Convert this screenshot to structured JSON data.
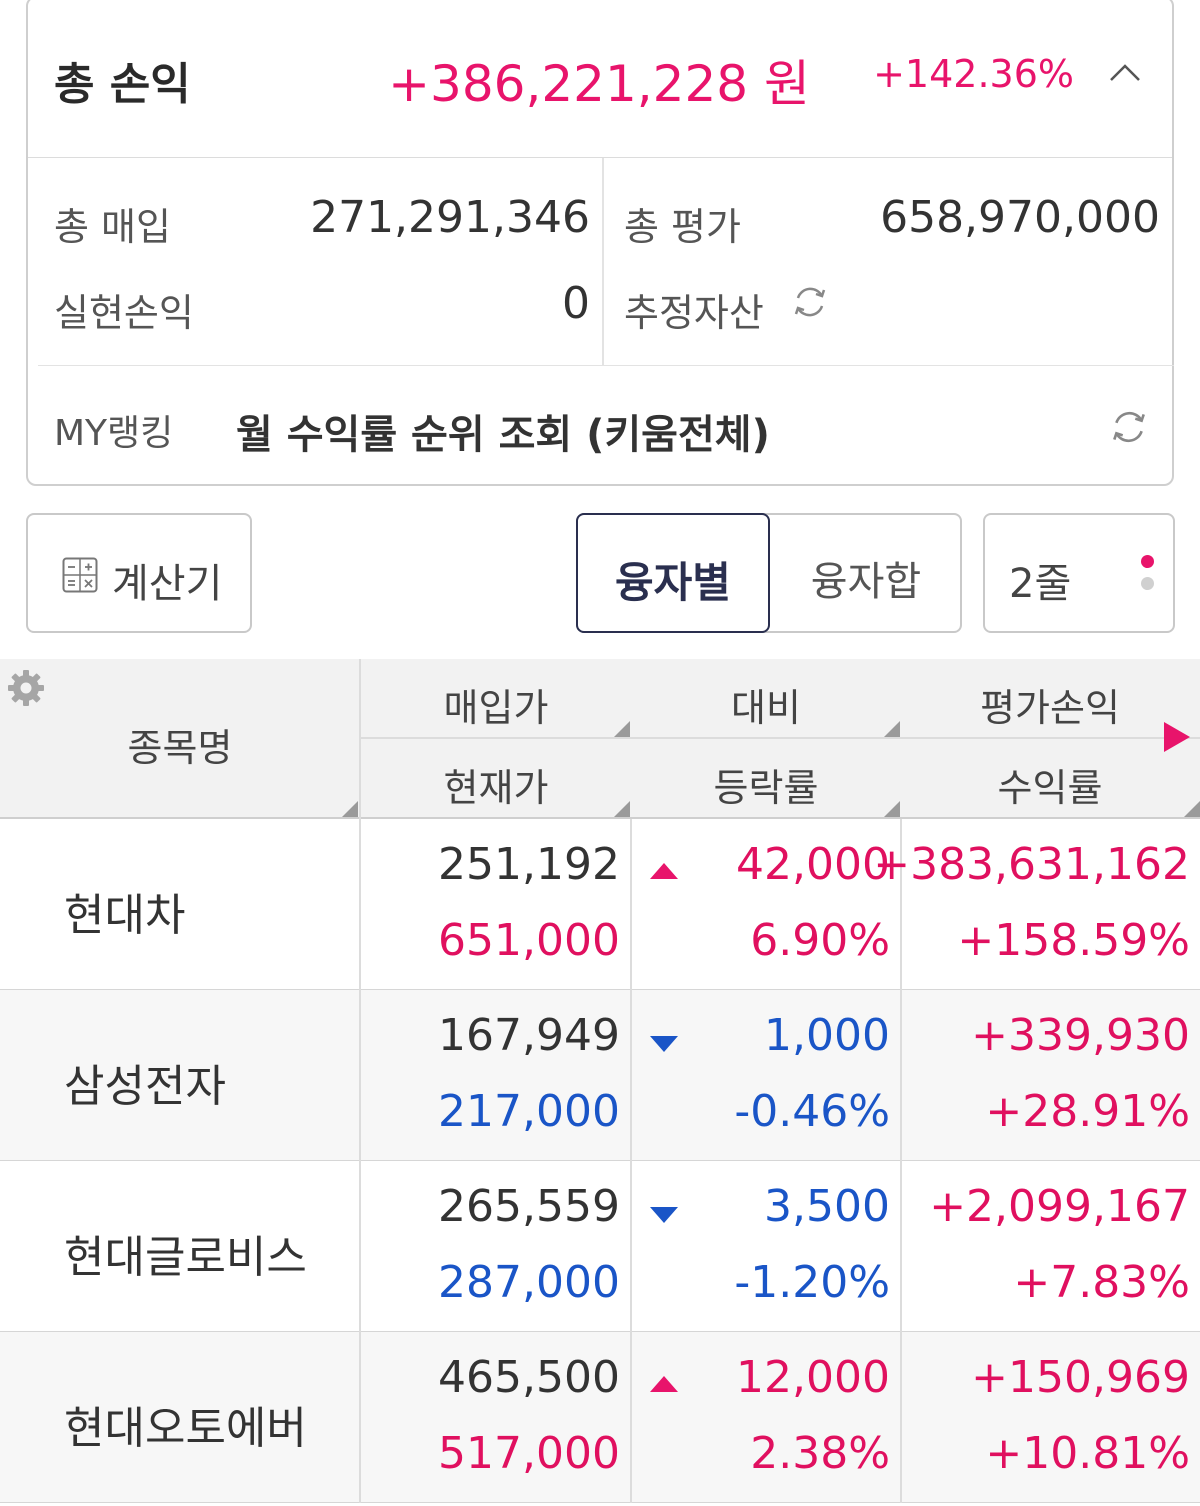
{
  "summary": {
    "title": "총 손익",
    "amount": "+386,221,228 원",
    "rate": "+142.36%",
    "total_purchase_label": "총 매입",
    "total_purchase_value": "271,291,346",
    "total_eval_label": "총 평가",
    "total_eval_value": "658,970,000",
    "realized_label": "실현손익",
    "realized_value": "0",
    "est_assets_label": "추정자산",
    "ranking_label": "MY랭킹",
    "ranking_text": "월 수익률 순위 조회 (키움전체)"
  },
  "toolbar": {
    "calculator_label": "계산기",
    "by_loan_label": "융자별",
    "loan_sum_label": "융자합",
    "lines_label": "2줄"
  },
  "table": {
    "headers": {
      "name": "종목명",
      "purchase_price": "매입가",
      "current_price": "현재가",
      "change": "대비",
      "change_rate": "등락률",
      "eval_pl": "평가손익",
      "return_rate": "수익률"
    },
    "rows": [
      {
        "name": "현대차",
        "purchase": "251,192",
        "current": "651,000",
        "direction": "up",
        "change": "42,000",
        "change_rate": "6.90%",
        "pl": "+383,631,162",
        "return": "+158.59%"
      },
      {
        "name": "삼성전자",
        "purchase": "167,949",
        "current": "217,000",
        "direction": "down",
        "change": "1,000",
        "change_rate": "-0.46%",
        "pl": "+339,930",
        "return": "+28.91%"
      },
      {
        "name": "현대글로비스",
        "purchase": "265,559",
        "current": "287,000",
        "direction": "down",
        "change": "3,500",
        "change_rate": "-1.20%",
        "pl": "+2,099,167",
        "return": "+7.83%"
      },
      {
        "name": "현대오토에버",
        "purchase": "465,500",
        "current": "517,000",
        "direction": "up",
        "change": "12,000",
        "change_rate": "2.38%",
        "pl": "+150,969",
        "return": "+10.81%"
      }
    ]
  },
  "colors": {
    "accent_red": "#e8146b",
    "accent_blue": "#1a55c7",
    "active_border": "#2a2f4f"
  }
}
